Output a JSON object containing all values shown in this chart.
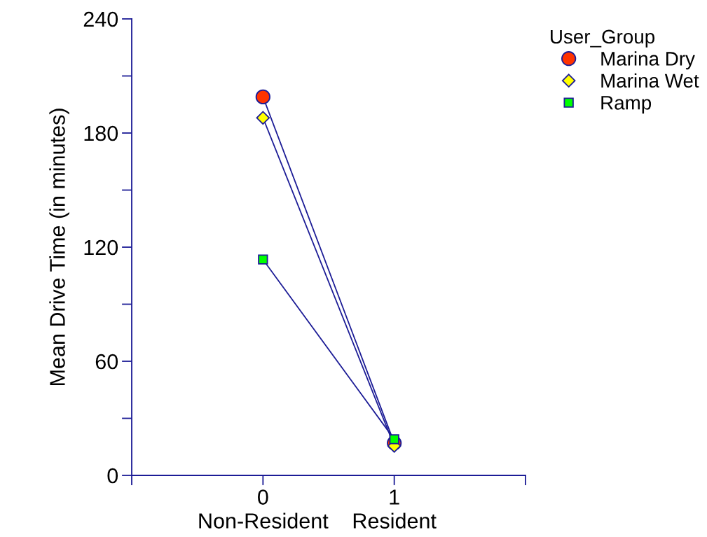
{
  "chart_data": {
    "type": "line",
    "ylabel": "Mean Drive Time (in minutes)",
    "legend_title": "User_Group",
    "legend": "top right",
    "x": [
      0,
      1
    ],
    "xlim": [
      -1,
      2
    ],
    "xticks": [
      {
        "value": -1,
        "label": null
      },
      {
        "value": 0,
        "label": "0\nNon-Resident"
      },
      {
        "value": 1,
        "label": "1\nResident"
      },
      {
        "value": 2,
        "label": null
      }
    ],
    "ylim": [
      0,
      240
    ],
    "yticks": [
      0,
      {
        "value": 30,
        "label": null
      },
      60,
      {
        "value": 90,
        "label": null
      },
      120,
      {
        "value": 150,
        "label": null
      },
      180,
      {
        "value": 210,
        "label": null
      },
      240
    ],
    "grid": false,
    "line_style": "solid",
    "series": [
      {
        "name": "Marina Dry",
        "color": "#ff3300",
        "marker": "circle",
        "values": [
          199,
          17
        ]
      },
      {
        "name": "Marina Wet",
        "color": "#ffff00",
        "marker": "diamond",
        "values": [
          188,
          15.5
        ]
      },
      {
        "name": "Ramp",
        "color": "#00ff00",
        "marker": "square",
        "values": [
          113.5,
          19
        ]
      }
    ]
  }
}
